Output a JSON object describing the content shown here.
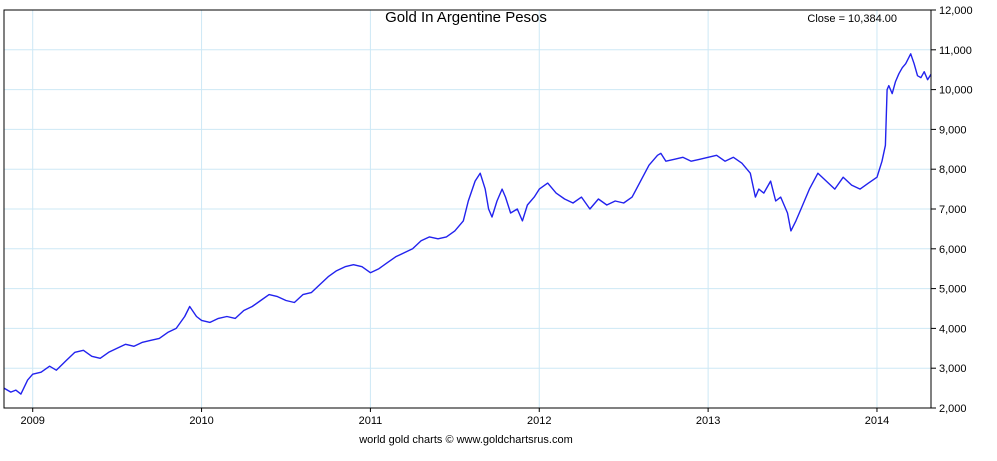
{
  "chart_data": {
    "type": "line",
    "title": "Gold In Argentine Pesos",
    "close_label": "Close = 10,384.00",
    "source": "world gold charts © www.goldchartsrus.com",
    "xlabel": "",
    "ylabel": "",
    "ylim": [
      2000,
      12000
    ],
    "xlim": [
      2008.83,
      2014.32
    ],
    "y_ticks": [
      2000,
      3000,
      4000,
      5000,
      6000,
      7000,
      8000,
      9000,
      10000,
      11000,
      12000
    ],
    "y_tick_labels": [
      "2,000",
      "3,000",
      "4,000",
      "5,000",
      "6,000",
      "7,000",
      "8,000",
      "9,000",
      "10,000",
      "11,000",
      "12,000"
    ],
    "x_ticks": [
      2009,
      2010,
      2011,
      2012,
      2013,
      2014
    ],
    "x_tick_labels": [
      "2009",
      "2010",
      "2011",
      "2012",
      "2013",
      "2014"
    ],
    "grid": true,
    "y_axis_side": "right",
    "colors": {
      "line": "#2222ee",
      "grid": "#cde8f5",
      "axis": "#000000"
    },
    "series": [
      {
        "x": [
          2008.83,
          2008.87,
          2008.9,
          2008.93,
          2008.97,
          2009.0,
          2009.05,
          2009.1,
          2009.14,
          2009.2,
          2009.25,
          2009.3,
          2009.35,
          2009.4,
          2009.45,
          2009.5,
          2009.55,
          2009.6,
          2009.65,
          2009.7,
          2009.75,
          2009.8,
          2009.85,
          2009.9,
          2009.93,
          2009.97,
          2010.0,
          2010.05,
          2010.1,
          2010.15,
          2010.2,
          2010.25,
          2010.3,
          2010.35,
          2010.4,
          2010.45,
          2010.5,
          2010.55,
          2010.6,
          2010.65,
          2010.7,
          2010.75,
          2010.8,
          2010.85,
          2010.9,
          2010.95,
          2011.0,
          2011.05,
          2011.1,
          2011.15,
          2011.2,
          2011.25,
          2011.3,
          2011.35,
          2011.4,
          2011.45,
          2011.5,
          2011.55,
          2011.58,
          2011.62,
          2011.65,
          2011.68,
          2011.7,
          2011.72,
          2011.75,
          2011.78,
          2011.8,
          2011.83,
          2011.87,
          2011.9,
          2011.93,
          2011.97,
          2012.0,
          2012.05,
          2012.1,
          2012.15,
          2012.2,
          2012.25,
          2012.3,
          2012.35,
          2012.4,
          2012.45,
          2012.5,
          2012.55,
          2012.6,
          2012.65,
          2012.7,
          2012.72,
          2012.75,
          2012.8,
          2012.85,
          2012.9,
          2012.95,
          2013.0,
          2013.05,
          2013.1,
          2013.15,
          2013.2,
          2013.25,
          2013.28,
          2013.3,
          2013.33,
          2013.37,
          2013.4,
          2013.43,
          2013.47,
          2013.49,
          2013.52,
          2013.55,
          2013.6,
          2013.65,
          2013.7,
          2013.75,
          2013.8,
          2013.85,
          2013.9,
          2013.95,
          2014.0,
          2014.03,
          2014.05,
          2014.06,
          2014.07,
          2014.09,
          2014.11,
          2014.13,
          2014.15,
          2014.17,
          2014.2,
          2014.22,
          2014.24,
          2014.26,
          2014.28,
          2014.3,
          2014.32
        ],
        "values": [
          2500,
          2400,
          2450,
          2350,
          2700,
          2850,
          2900,
          3050,
          2950,
          3200,
          3400,
          3450,
          3300,
          3250,
          3400,
          3500,
          3600,
          3550,
          3650,
          3700,
          3750,
          3900,
          4000,
          4300,
          4550,
          4300,
          4200,
          4150,
          4250,
          4300,
          4250,
          4450,
          4550,
          4700,
          4850,
          4800,
          4700,
          4650,
          4850,
          4900,
          5100,
          5300,
          5450,
          5550,
          5600,
          5550,
          5400,
          5500,
          5650,
          5800,
          5900,
          6000,
          6200,
          6300,
          6250,
          6300,
          6450,
          6700,
          7200,
          7700,
          7900,
          7500,
          7000,
          6800,
          7200,
          7500,
          7300,
          6900,
          7000,
          6700,
          7100,
          7300,
          7500,
          7650,
          7400,
          7250,
          7150,
          7300,
          7000,
          7250,
          7100,
          7200,
          7150,
          7300,
          7700,
          8100,
          8350,
          8400,
          8200,
          8250,
          8300,
          8200,
          8250,
          8300,
          8350,
          8200,
          8300,
          8150,
          7900,
          7300,
          7500,
          7400,
          7700,
          7200,
          7300,
          6900,
          6450,
          6700,
          7000,
          7500,
          7900,
          7700,
          7500,
          7800,
          7600,
          7500,
          7650,
          7800,
          8200,
          8600,
          10000,
          10100,
          9900,
          10200,
          10400,
          10550,
          10650,
          10900,
          10650,
          10350,
          10300,
          10450,
          10250,
          10384
        ]
      }
    ]
  }
}
